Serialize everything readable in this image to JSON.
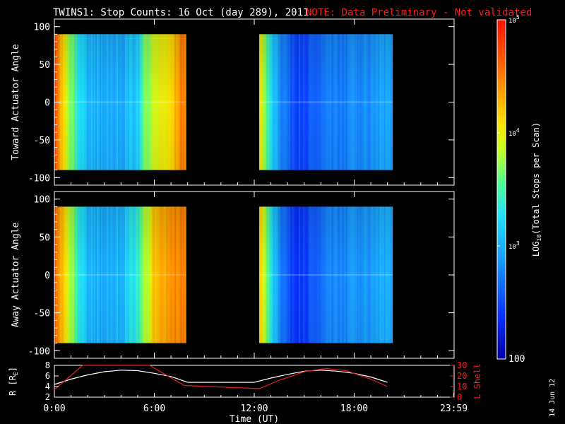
{
  "header": {
    "title": "TWINS1: Stop Counts: 16 Oct (day 289), 2011",
    "note": "NOTE: Data Preliminary - Not validated"
  },
  "side_date": "14 Jun 12",
  "colors": {
    "background": "#000000",
    "axis": "#ffffff",
    "note": "#ff1a1a",
    "r_line": "#ffffff",
    "l_line": "#e02020"
  },
  "chart_data": [
    {
      "type": "heatmap",
      "name": "toward",
      "ylabel": "Toward Actuator Angle",
      "xlim": [
        0,
        24
      ],
      "ylim": [
        -110,
        110
      ],
      "yticks": [
        "100",
        "50",
        "0",
        "-50",
        "-100"
      ],
      "ytick_values": [
        100,
        50,
        0,
        -50,
        -100
      ],
      "data_blocks": [
        {
          "t_start": 0.0,
          "t_end": 7.9,
          "angle_range": [
            -90,
            90
          ]
        },
        {
          "t_start": 12.3,
          "t_end": 20.3,
          "angle_range": [
            -90,
            90
          ]
        }
      ],
      "log_counts_columns": [
        {
          "t": 0.1,
          "v": 4.7
        },
        {
          "t": 0.3,
          "v": 4.3
        },
        {
          "t": 0.6,
          "v": 4.0
        },
        {
          "t": 1.0,
          "v": 3.7
        },
        {
          "t": 1.5,
          "v": 3.25
        },
        {
          "t": 2.0,
          "v": 3.05
        },
        {
          "t": 3.0,
          "v": 3.0
        },
        {
          "t": 4.0,
          "v": 3.0
        },
        {
          "t": 5.0,
          "v": 3.15
        },
        {
          "t": 5.5,
          "v": 3.7
        },
        {
          "t": 6.0,
          "v": 3.9
        },
        {
          "t": 7.0,
          "v": 4.1
        },
        {
          "t": 7.6,
          "v": 4.5
        },
        {
          "t": 12.4,
          "v": 4.0
        },
        {
          "t": 12.8,
          "v": 3.5
        },
        {
          "t": 13.3,
          "v": 3.0
        },
        {
          "t": 14.0,
          "v": 2.6
        },
        {
          "t": 15.0,
          "v": 2.5
        },
        {
          "t": 16.0,
          "v": 2.7
        },
        {
          "t": 17.0,
          "v": 2.75
        },
        {
          "t": 18.0,
          "v": 2.8
        },
        {
          "t": 19.0,
          "v": 2.85
        },
        {
          "t": 20.0,
          "v": 2.95
        }
      ]
    },
    {
      "type": "heatmap",
      "name": "away",
      "ylabel": "Away Actuator Angle",
      "xlim": [
        0,
        24
      ],
      "ylim": [
        -110,
        110
      ],
      "yticks": [
        "100",
        "50",
        "0",
        "-50",
        "-100"
      ],
      "ytick_values": [
        100,
        50,
        0,
        -50,
        -100
      ],
      "data_blocks": [
        {
          "t_start": 0.0,
          "t_end": 7.9,
          "angle_range": [
            -90,
            90
          ]
        },
        {
          "t_start": 12.3,
          "t_end": 20.3,
          "angle_range": [
            -90,
            90
          ]
        }
      ],
      "log_counts_columns": [
        {
          "t": 0.1,
          "v": 4.6
        },
        {
          "t": 0.3,
          "v": 4.3
        },
        {
          "t": 0.6,
          "v": 4.1
        },
        {
          "t": 1.0,
          "v": 3.8
        },
        {
          "t": 1.5,
          "v": 3.3
        },
        {
          "t": 2.0,
          "v": 3.05
        },
        {
          "t": 3.0,
          "v": 3.0
        },
        {
          "t": 4.0,
          "v": 3.05
        },
        {
          "t": 5.0,
          "v": 3.4
        },
        {
          "t": 5.5,
          "v": 3.8
        },
        {
          "t": 6.0,
          "v": 4.2
        },
        {
          "t": 7.0,
          "v": 4.4
        },
        {
          "t": 7.6,
          "v": 4.5
        },
        {
          "t": 12.4,
          "v": 4.1
        },
        {
          "t": 12.8,
          "v": 3.6
        },
        {
          "t": 13.3,
          "v": 3.0
        },
        {
          "t": 14.0,
          "v": 2.5
        },
        {
          "t": 15.0,
          "v": 2.45
        },
        {
          "t": 16.0,
          "v": 2.7
        },
        {
          "t": 17.0,
          "v": 2.8
        },
        {
          "t": 18.0,
          "v": 2.85
        },
        {
          "t": 19.0,
          "v": 2.9
        },
        {
          "t": 20.0,
          "v": 3.0
        }
      ]
    },
    {
      "type": "line",
      "name": "ephemeris",
      "xlabel": "Time (UT)",
      "xlim": [
        0,
        24
      ],
      "xticks": [
        "0:00",
        "6:00",
        "12:00",
        "18:00",
        "23:59"
      ],
      "xtick_values": [
        0,
        6,
        12,
        18,
        23.98
      ],
      "ylabel_left": "R [R",
      "ylabel_left_sub": "E",
      "ylabel_left_end": "]",
      "ylim_left": [
        2,
        8
      ],
      "yticks_left": [
        "8",
        "6",
        "4",
        "2"
      ],
      "ytick_values_left": [
        8,
        6,
        4,
        2
      ],
      "ylabel_right": "L Shell",
      "ylim_right": [
        0,
        30
      ],
      "yticks_right": [
        "30",
        "20",
        "10",
        "0"
      ],
      "ytick_values_right": [
        30,
        20,
        10,
        0
      ],
      "series": [
        {
          "axis": "left",
          "x": [
            0,
            1,
            2,
            3,
            4,
            5,
            6,
            7,
            8,
            9,
            10,
            11,
            12,
            13,
            14,
            15,
            16,
            17,
            18,
            19,
            20
          ],
          "values": [
            4.4,
            5.4,
            6.2,
            6.8,
            7.1,
            7.0,
            6.5,
            5.9,
            4.8,
            4.8,
            4.8,
            4.8,
            4.8,
            5.6,
            6.3,
            6.9,
            7.1,
            6.9,
            6.5,
            5.8,
            4.8
          ]
        },
        {
          "axis": "right",
          "x": [
            0,
            1.7,
            1.71,
            5.7,
            5.71,
            7.8,
            12.3,
            13.5,
            15,
            16.3,
            17.5,
            19,
            20
          ],
          "values": [
            7,
            30,
            30,
            30,
            30,
            11,
            8,
            16,
            24,
            27,
            25,
            17,
            10
          ]
        }
      ]
    }
  ],
  "colorbar": {
    "label": "LOG",
    "label_sub": "10",
    "label_rest": "(Total Stops per Scan)",
    "tick_values": [
      2,
      3,
      4,
      5
    ],
    "tick_labels": [
      {
        "base": "100",
        "exp": ""
      },
      {
        "base": "10",
        "exp": "3"
      },
      {
        "base": "10",
        "exp": "4"
      },
      {
        "base": "10",
        "exp": "5"
      }
    ]
  }
}
